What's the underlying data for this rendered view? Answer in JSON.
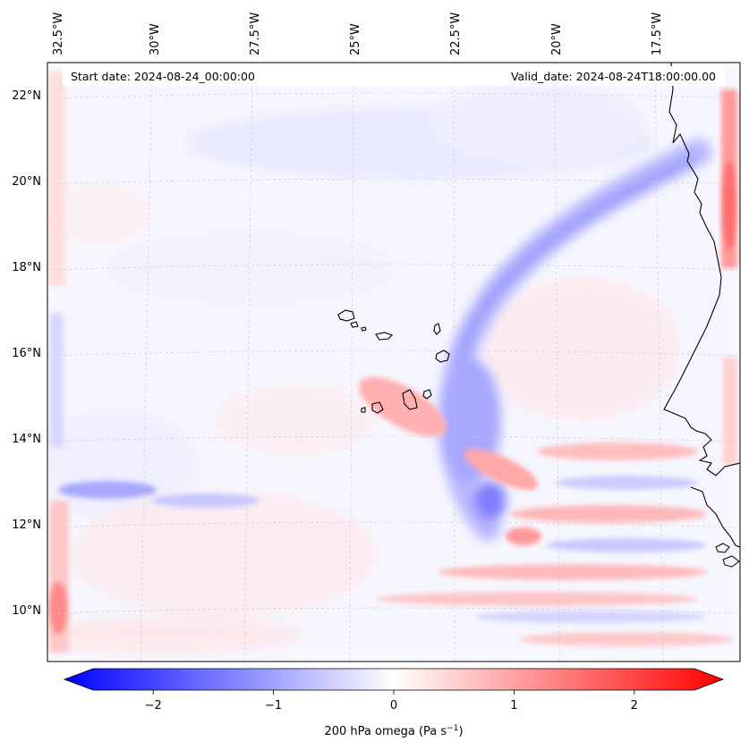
{
  "map": {
    "start_date": "Start date: 2024-08-24_00:00:00",
    "valid_date": "Valid_date: 2024-08-24T18:00:00.00",
    "lon_labels": [
      "32.5°W",
      "30°W",
      "27.5°W",
      "25°W",
      "22.5°W",
      "20°W",
      "17.5°W"
    ],
    "lat_labels": [
      "22°N",
      "20°N",
      "18°N",
      "16°N",
      "14°N",
      "12°N",
      "10°N"
    ]
  },
  "colorbar": {
    "title_main": "200 hPa omega (Pa s",
    "title_sup": "−1",
    "title_close": ")",
    "ticks": [
      "−2",
      "−1",
      "0",
      "1",
      "2"
    ],
    "tick_values": [
      -2,
      -1,
      0,
      1,
      2
    ],
    "vmin": -2.5,
    "vmax": 2.5,
    "colors": {
      "negative": "#0000ff",
      "zero": "#ffffff",
      "positive": "#ff0000"
    }
  }
}
